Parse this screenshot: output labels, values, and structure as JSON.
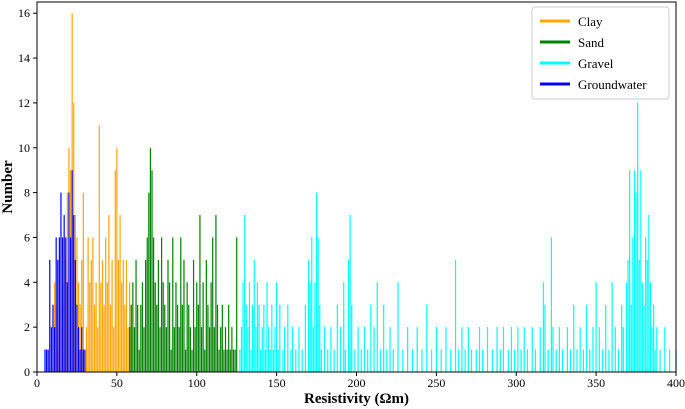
{
  "chart_data": {
    "type": "bar",
    "title": "",
    "xlabel": "Resistivity (Ωm)",
    "ylabel": "Number",
    "xlim": [
      0,
      400
    ],
    "ylim": [
      0,
      16.5
    ],
    "xticks": [
      0,
      50,
      100,
      150,
      200,
      250,
      300,
      350,
      400
    ],
    "yticks": [
      0,
      2,
      4,
      6,
      8,
      10,
      12,
      14,
      16
    ],
    "grid": false,
    "legend": "top-right",
    "series": [
      {
        "name": "Clay",
        "color": "#ffa500",
        "points": [
          [
            10,
            2
          ],
          [
            11,
            4
          ],
          [
            12,
            3
          ],
          [
            13,
            1
          ],
          [
            14,
            2
          ],
          [
            15,
            3
          ],
          [
            16,
            4
          ],
          [
            17,
            6
          ],
          [
            18,
            5
          ],
          [
            19,
            8
          ],
          [
            20,
            10
          ],
          [
            21,
            9
          ],
          [
            22,
            16
          ],
          [
            23,
            12
          ],
          [
            24,
            7
          ],
          [
            25,
            6
          ],
          [
            26,
            4
          ],
          [
            27,
            3
          ],
          [
            28,
            5
          ],
          [
            29,
            8
          ],
          [
            30,
            1
          ],
          [
            31,
            2
          ],
          [
            32,
            6
          ],
          [
            33,
            4
          ],
          [
            34,
            5
          ],
          [
            35,
            6
          ],
          [
            36,
            3
          ],
          [
            37,
            4
          ],
          [
            38,
            2
          ],
          [
            39,
            11
          ],
          [
            40,
            4
          ],
          [
            41,
            5
          ],
          [
            42,
            3
          ],
          [
            43,
            6
          ],
          [
            44,
            4
          ],
          [
            45,
            7
          ],
          [
            46,
            3
          ],
          [
            47,
            5
          ],
          [
            48,
            2
          ],
          [
            49,
            9
          ],
          [
            50,
            10
          ],
          [
            51,
            5
          ],
          [
            52,
            7
          ],
          [
            53,
            4
          ],
          [
            54,
            5
          ],
          [
            55,
            3
          ],
          [
            56,
            5
          ],
          [
            57,
            2
          ],
          [
            58,
            4
          ],
          [
            59,
            3
          ]
        ]
      },
      {
        "name": "Sand",
        "color": "#008000",
        "points": [
          [
            58,
            2
          ],
          [
            59,
            3
          ],
          [
            60,
            4
          ],
          [
            61,
            2
          ],
          [
            62,
            5
          ],
          [
            63,
            3
          ],
          [
            64,
            1
          ],
          [
            65,
            3
          ],
          [
            66,
            4
          ],
          [
            67,
            2
          ],
          [
            68,
            5
          ],
          [
            69,
            6
          ],
          [
            70,
            8
          ],
          [
            71,
            10
          ],
          [
            72,
            9
          ],
          [
            73,
            6
          ],
          [
            74,
            4
          ],
          [
            75,
            3
          ],
          [
            76,
            5
          ],
          [
            77,
            2
          ],
          [
            78,
            6
          ],
          [
            79,
            4
          ],
          [
            80,
            3
          ],
          [
            81,
            2
          ],
          [
            82,
            5
          ],
          [
            83,
            4
          ],
          [
            84,
            1
          ],
          [
            85,
            6
          ],
          [
            86,
            2
          ],
          [
            87,
            4
          ],
          [
            88,
            3
          ],
          [
            89,
            2
          ],
          [
            90,
            6
          ],
          [
            91,
            3
          ],
          [
            92,
            5
          ],
          [
            93,
            1
          ],
          [
            94,
            4
          ],
          [
            95,
            3
          ],
          [
            96,
            2
          ],
          [
            97,
            1
          ],
          [
            98,
            5
          ],
          [
            99,
            2
          ],
          [
            100,
            4
          ],
          [
            101,
            3
          ],
          [
            102,
            7
          ],
          [
            103,
            2
          ],
          [
            104,
            4
          ],
          [
            105,
            1
          ],
          [
            106,
            5
          ],
          [
            107,
            3
          ],
          [
            108,
            2
          ],
          [
            109,
            4
          ],
          [
            110,
            6
          ],
          [
            111,
            2
          ],
          [
            112,
            7
          ],
          [
            113,
            3
          ],
          [
            114,
            1
          ],
          [
            115,
            2
          ],
          [
            116,
            3
          ],
          [
            117,
            1
          ],
          [
            118,
            2
          ],
          [
            119,
            1
          ],
          [
            120,
            3
          ],
          [
            121,
            1
          ],
          [
            122,
            2
          ],
          [
            123,
            1
          ],
          [
            124,
            1
          ],
          [
            125,
            6
          ]
        ]
      },
      {
        "name": "Gravel",
        "color": "#00ffff",
        "points": [
          [
            127,
            1
          ],
          [
            128,
            2
          ],
          [
            129,
            4
          ],
          [
            130,
            7
          ],
          [
            131,
            3
          ],
          [
            132,
            2
          ],
          [
            133,
            4
          ],
          [
            134,
            1
          ],
          [
            135,
            3
          ],
          [
            136,
            5
          ],
          [
            137,
            2
          ],
          [
            138,
            4
          ],
          [
            139,
            3
          ],
          [
            140,
            1
          ],
          [
            141,
            2
          ],
          [
            142,
            3
          ],
          [
            143,
            1
          ],
          [
            144,
            4
          ],
          [
            145,
            2
          ],
          [
            146,
            1
          ],
          [
            147,
            3
          ],
          [
            148,
            1
          ],
          [
            149,
            2
          ],
          [
            150,
            4
          ],
          [
            151,
            1
          ],
          [
            152,
            3
          ],
          [
            154,
            1
          ],
          [
            155,
            2
          ],
          [
            157,
            3
          ],
          [
            159,
            1
          ],
          [
            160,
            2
          ],
          [
            162,
            1
          ],
          [
            164,
            2
          ],
          [
            166,
            1
          ],
          [
            168,
            3
          ],
          [
            170,
            5
          ],
          [
            171,
            4
          ],
          [
            172,
            6
          ],
          [
            173,
            2
          ],
          [
            174,
            4
          ],
          [
            175,
            8
          ],
          [
            176,
            6
          ],
          [
            177,
            3
          ],
          [
            178,
            1
          ],
          [
            180,
            2
          ],
          [
            182,
            1
          ],
          [
            184,
            2
          ],
          [
            186,
            1
          ],
          [
            188,
            3
          ],
          [
            190,
            2
          ],
          [
            192,
            4
          ],
          [
            193,
            1
          ],
          [
            195,
            5
          ],
          [
            196,
            7
          ],
          [
            197,
            3
          ],
          [
            199,
            1
          ],
          [
            201,
            2
          ],
          [
            203,
            1
          ],
          [
            205,
            2
          ],
          [
            207,
            1
          ],
          [
            209,
            3
          ],
          [
            211,
            2
          ],
          [
            213,
            4
          ],
          [
            215,
            1
          ],
          [
            217,
            3
          ],
          [
            219,
            1
          ],
          [
            221,
            2
          ],
          [
            223,
            1
          ],
          [
            226,
            4
          ],
          [
            229,
            1
          ],
          [
            232,
            2
          ],
          [
            235,
            1
          ],
          [
            238,
            2
          ],
          [
            241,
            1
          ],
          [
            244,
            3
          ],
          [
            247,
            1
          ],
          [
            250,
            2
          ],
          [
            253,
            1
          ],
          [
            256,
            2
          ],
          [
            259,
            1
          ],
          [
            262,
            5
          ],
          [
            264,
            1
          ],
          [
            266,
            2
          ],
          [
            268,
            1
          ],
          [
            270,
            2
          ],
          [
            272,
            1
          ],
          [
            275,
            1
          ],
          [
            277,
            2
          ],
          [
            279,
            1
          ],
          [
            282,
            2
          ],
          [
            285,
            1
          ],
          [
            288,
            2
          ],
          [
            290,
            1
          ],
          [
            292,
            2
          ],
          [
            295,
            1
          ],
          [
            297,
            2
          ],
          [
            299,
            1
          ],
          [
            301,
            2
          ],
          [
            303,
            1
          ],
          [
            305,
            2
          ],
          [
            307,
            1
          ],
          [
            310,
            2
          ],
          [
            312,
            1
          ],
          [
            315,
            2
          ],
          [
            317,
            4
          ],
          [
            318,
            3
          ],
          [
            320,
            1
          ],
          [
            322,
            6
          ],
          [
            323,
            2
          ],
          [
            325,
            1
          ],
          [
            327,
            2
          ],
          [
            329,
            1
          ],
          [
            332,
            2
          ],
          [
            334,
            1
          ],
          [
            336,
            3
          ],
          [
            338,
            1
          ],
          [
            340,
            2
          ],
          [
            342,
            1
          ],
          [
            344,
            3
          ],
          [
            346,
            1
          ],
          [
            348,
            2
          ],
          [
            350,
            4
          ],
          [
            352,
            2
          ],
          [
            354,
            1
          ],
          [
            356,
            3
          ],
          [
            358,
            1
          ],
          [
            360,
            4
          ],
          [
            362,
            2
          ],
          [
            364,
            1
          ],
          [
            366,
            3
          ],
          [
            367,
            2
          ],
          [
            369,
            4
          ],
          [
            370,
            5
          ],
          [
            371,
            9
          ],
          [
            372,
            3
          ],
          [
            373,
            6
          ],
          [
            374,
            9
          ],
          [
            375,
            8
          ],
          [
            376,
            12
          ],
          [
            377,
            5
          ],
          [
            378,
            9
          ],
          [
            379,
            4
          ],
          [
            380,
            3
          ],
          [
            381,
            6
          ],
          [
            382,
            5
          ],
          [
            383,
            7
          ],
          [
            384,
            4
          ],
          [
            385,
            2
          ],
          [
            386,
            3
          ],
          [
            387,
            1
          ],
          [
            388,
            2
          ],
          [
            390,
            1
          ],
          [
            393,
            2
          ],
          [
            396,
            1
          ],
          [
            400,
            1
          ]
        ]
      },
      {
        "name": "Groundwater",
        "color": "#0000ff",
        "points": [
          [
            5,
            1
          ],
          [
            6,
            1
          ],
          [
            7,
            1
          ],
          [
            8,
            5
          ],
          [
            9,
            2
          ],
          [
            10,
            3
          ],
          [
            11,
            2
          ],
          [
            12,
            6
          ],
          [
            13,
            5
          ],
          [
            14,
            6
          ],
          [
            15,
            8
          ],
          [
            16,
            6
          ],
          [
            17,
            7
          ],
          [
            18,
            6
          ],
          [
            19,
            4
          ],
          [
            20,
            8
          ],
          [
            21,
            6
          ],
          [
            22,
            9
          ],
          [
            23,
            7
          ],
          [
            24,
            5
          ],
          [
            25,
            3
          ],
          [
            26,
            2
          ],
          [
            27,
            1
          ],
          [
            28,
            2
          ],
          [
            29,
            1
          ],
          [
            30,
            1
          ]
        ]
      }
    ]
  }
}
